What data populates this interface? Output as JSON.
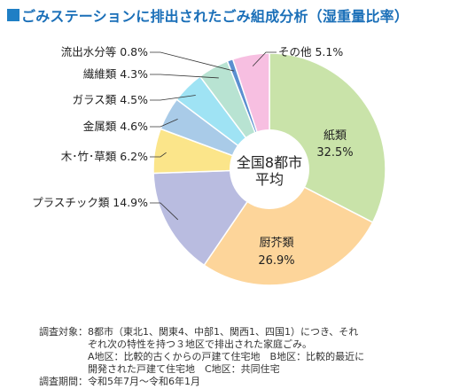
{
  "title": "ごみステーションに排出されたごみ組成分析（湿重量比率）",
  "chart_data": {
    "type": "pie",
    "style": "donut",
    "center_label": [
      "全国8都市",
      "平均"
    ],
    "unit": "%",
    "slices": [
      {
        "name": "紙類",
        "value": 32.5,
        "color": "#c9e3a9",
        "label_position": "inside"
      },
      {
        "name": "厨芥類",
        "value": 26.9,
        "color": "#fdd59a",
        "label_position": "inside"
      },
      {
        "name": "プラスチック類",
        "value": 14.9,
        "color": "#b9bce0",
        "label_position": "outside"
      },
      {
        "name": "木･竹･草類",
        "value": 6.2,
        "color": "#fbe58a",
        "label_position": "outside"
      },
      {
        "name": "金属類",
        "value": 4.6,
        "color": "#a9cbe8",
        "label_position": "outside"
      },
      {
        "name": "ガラス類",
        "value": 4.5,
        "color": "#9fe3f4",
        "label_position": "outside"
      },
      {
        "name": "繊維類",
        "value": 4.3,
        "color": "#b8e3d2",
        "label_position": "outside"
      },
      {
        "name": "流出水分等",
        "value": 0.8,
        "color": "#5b8fd0",
        "label_position": "outside"
      },
      {
        "name": "その他",
        "value": 5.1,
        "color": "#f7bfe1",
        "label_position": "outside"
      }
    ]
  },
  "notes": {
    "survey_target_label": "調査対象：",
    "survey_target_lines": [
      "8都市（東北1、関東4、中部1、関西1、四国1）につき、それ",
      "ぞれ次の特性を持つ３地区で排出された家庭ごみ。",
      "A地区：比較的古くからの戸建て住宅地　B地区：比較的最近に",
      "開発された戸建て住宅地　C地区：共同住宅"
    ],
    "survey_period_label": "調査期間：",
    "survey_period": "令和5年7月～令和6年1月"
  }
}
